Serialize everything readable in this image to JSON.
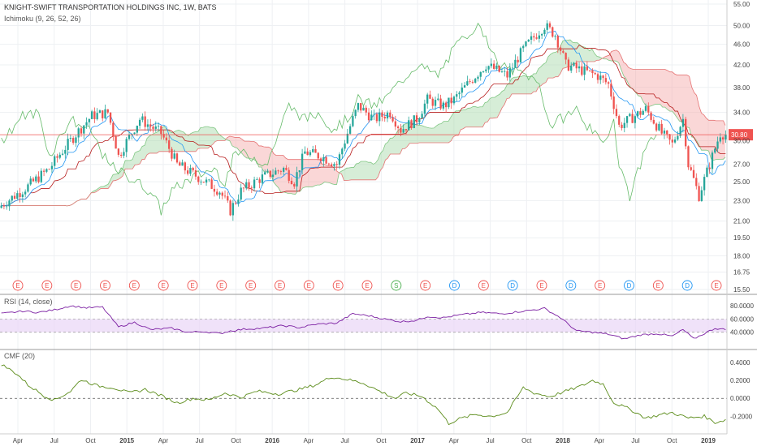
{
  "header": {
    "title": "KNIGHT-SWIFT TRANSPORTATION HOLDINGS INC, 1W, BATS",
    "indicator": "Ichimoku (9, 26, 52, 26)"
  },
  "colors": {
    "up": "#26a69a",
    "down": "#ef5350",
    "tenkan": "#2196f3",
    "kijun": "#b71c1c",
    "chikou": "#66bb6a",
    "cloud_bull": "#a5d6a7",
    "cloud_bear": "#f4a6a6",
    "rsi": "#7b1fa2",
    "rsi_band": "#e9d5f7",
    "cmf": "#5b8c1a",
    "last_price": "#ef5350"
  },
  "last_price_label": "30.80",
  "chart_data": [
    {
      "type": "candlestick",
      "ylim": [
        15.5,
        55
      ],
      "scale": "log",
      "y_ticks": [
        "55.00",
        "50.00",
        "46.00",
        "42.00",
        "38.00",
        "34.00",
        "30.00",
        "27.00",
        "25.00",
        "23.00",
        "21.00",
        "19.50",
        "18.00",
        "16.75",
        "15.50"
      ],
      "x_ticks": [
        "Apr",
        "Jul",
        "Oct",
        "2015",
        "Apr",
        "Jul",
        "Oct",
        "2016",
        "Apr",
        "Jul",
        "Oct",
        "2017",
        "Apr",
        "Jul",
        "Oct",
        "2018",
        "Apr",
        "Jul",
        "Oct",
        "2019"
      ],
      "x_tick_bold": [
        "2015",
        "2016",
        "2017",
        "2018",
        "2019"
      ],
      "close_anchors": [
        [
          0,
          22.5
        ],
        [
          10,
          24.5
        ],
        [
          18,
          26.5
        ],
        [
          26,
          30
        ],
        [
          34,
          33.5
        ],
        [
          40,
          34
        ],
        [
          44,
          28
        ],
        [
          52,
          33
        ],
        [
          60,
          31
        ],
        [
          66,
          27
        ],
        [
          74,
          25.5
        ],
        [
          82,
          24
        ],
        [
          86,
          22
        ],
        [
          90,
          24
        ],
        [
          98,
          25.5
        ],
        [
          106,
          26.5
        ],
        [
          110,
          25
        ],
        [
          114,
          28.5
        ],
        [
          120,
          28
        ],
        [
          126,
          27
        ],
        [
          130,
          31
        ],
        [
          134,
          35
        ],
        [
          140,
          33
        ],
        [
          146,
          34
        ],
        [
          150,
          31.5
        ],
        [
          156,
          33
        ],
        [
          160,
          36
        ],
        [
          166,
          35
        ],
        [
          170,
          36
        ],
        [
          174,
          38
        ],
        [
          182,
          42
        ],
        [
          190,
          40
        ],
        [
          196,
          45
        ],
        [
          204,
          50
        ],
        [
          208,
          48
        ],
        [
          212,
          42
        ],
        [
          218,
          41
        ],
        [
          224,
          40
        ],
        [
          228,
          38.5
        ],
        [
          232,
          32
        ],
        [
          236,
          33
        ],
        [
          242,
          34.5
        ],
        [
          248,
          31
        ],
        [
          252,
          29.5
        ],
        [
          256,
          33
        ],
        [
          258,
          27
        ],
        [
          262,
          23.5
        ],
        [
          266,
          27
        ],
        [
          270,
          31
        ],
        [
          272,
          30.8
        ]
      ],
      "events": [
        "E",
        "E",
        "E",
        "E",
        "E",
        "E",
        "E",
        "E",
        "E",
        "E",
        "E",
        "E",
        "E",
        "S",
        "E",
        "D",
        "E",
        "D",
        "E",
        "D",
        "E",
        "D",
        "E",
        "D",
        "E"
      ],
      "annotation": "30.80"
    },
    {
      "type": "line",
      "label": "RSI (14, close)",
      "ylim": [
        20,
        90
      ],
      "y_ticks": [
        "80.0000",
        "60.0000",
        "40.0000"
      ],
      "band": [
        40,
        60
      ],
      "anchors": [
        [
          0,
          68
        ],
        [
          8,
          72
        ],
        [
          14,
          70
        ],
        [
          20,
          74
        ],
        [
          26,
          80
        ],
        [
          32,
          77
        ],
        [
          38,
          78
        ],
        [
          44,
          48
        ],
        [
          50,
          55
        ],
        [
          56,
          44
        ],
        [
          64,
          46
        ],
        [
          70,
          40
        ],
        [
          76,
          41
        ],
        [
          82,
          38
        ],
        [
          86,
          42
        ],
        [
          92,
          45
        ],
        [
          98,
          46
        ],
        [
          106,
          50
        ],
        [
          112,
          47
        ],
        [
          118,
          52
        ],
        [
          126,
          54
        ],
        [
          132,
          68
        ],
        [
          138,
          65
        ],
        [
          144,
          60
        ],
        [
          150,
          56
        ],
        [
          156,
          58
        ],
        [
          160,
          64
        ],
        [
          166,
          62
        ],
        [
          172,
          66
        ],
        [
          180,
          70
        ],
        [
          188,
          68
        ],
        [
          196,
          72
        ],
        [
          204,
          76
        ],
        [
          210,
          62
        ],
        [
          216,
          42
        ],
        [
          222,
          40
        ],
        [
          228,
          37
        ],
        [
          234,
          30
        ],
        [
          240,
          36
        ],
        [
          246,
          38
        ],
        [
          252,
          34
        ],
        [
          256,
          44
        ],
        [
          260,
          30
        ],
        [
          264,
          38
        ],
        [
          268,
          46
        ],
        [
          272,
          44
        ]
      ]
    },
    {
      "type": "line",
      "label": "CMF (20)",
      "ylim": [
        -0.36,
        0.5
      ],
      "y_ticks": [
        "0.4000",
        "0.2000",
        "0.0000",
        "-0.2000"
      ],
      "zero_line": true,
      "anchors": [
        [
          0,
          0.38
        ],
        [
          6,
          0.27
        ],
        [
          10,
          0.15
        ],
        [
          16,
          0.03
        ],
        [
          20,
          -0.02
        ],
        [
          26,
          0.08
        ],
        [
          30,
          0.21
        ],
        [
          36,
          0.14
        ],
        [
          42,
          0.12
        ],
        [
          48,
          0.06
        ],
        [
          54,
          0.1
        ],
        [
          60,
          0.03
        ],
        [
          66,
          -0.05
        ],
        [
          72,
          0.0
        ],
        [
          78,
          -0.02
        ],
        [
          84,
          0.06
        ],
        [
          90,
          0.01
        ],
        [
          96,
          0.08
        ],
        [
          104,
          0.05
        ],
        [
          112,
          0.1
        ],
        [
          118,
          0.15
        ],
        [
          124,
          0.24
        ],
        [
          130,
          0.21
        ],
        [
          136,
          0.17
        ],
        [
          142,
          0.08
        ],
        [
          148,
          0.0
        ],
        [
          152,
          0.06
        ],
        [
          158,
          0.02
        ],
        [
          164,
          -0.12
        ],
        [
          168,
          -0.28
        ],
        [
          172,
          -0.23
        ],
        [
          178,
          -0.18
        ],
        [
          184,
          -0.2
        ],
        [
          190,
          -0.16
        ],
        [
          196,
          0.12
        ],
        [
          200,
          0.06
        ],
        [
          206,
          0.02
        ],
        [
          212,
          0.08
        ],
        [
          218,
          0.14
        ],
        [
          222,
          0.2
        ],
        [
          226,
          0.16
        ],
        [
          230,
          -0.05
        ],
        [
          236,
          -0.12
        ],
        [
          242,
          -0.22
        ],
        [
          248,
          -0.18
        ],
        [
          252,
          -0.16
        ],
        [
          258,
          -0.22
        ],
        [
          264,
          -0.2
        ],
        [
          268,
          -0.27
        ],
        [
          272,
          -0.24
        ]
      ]
    }
  ]
}
